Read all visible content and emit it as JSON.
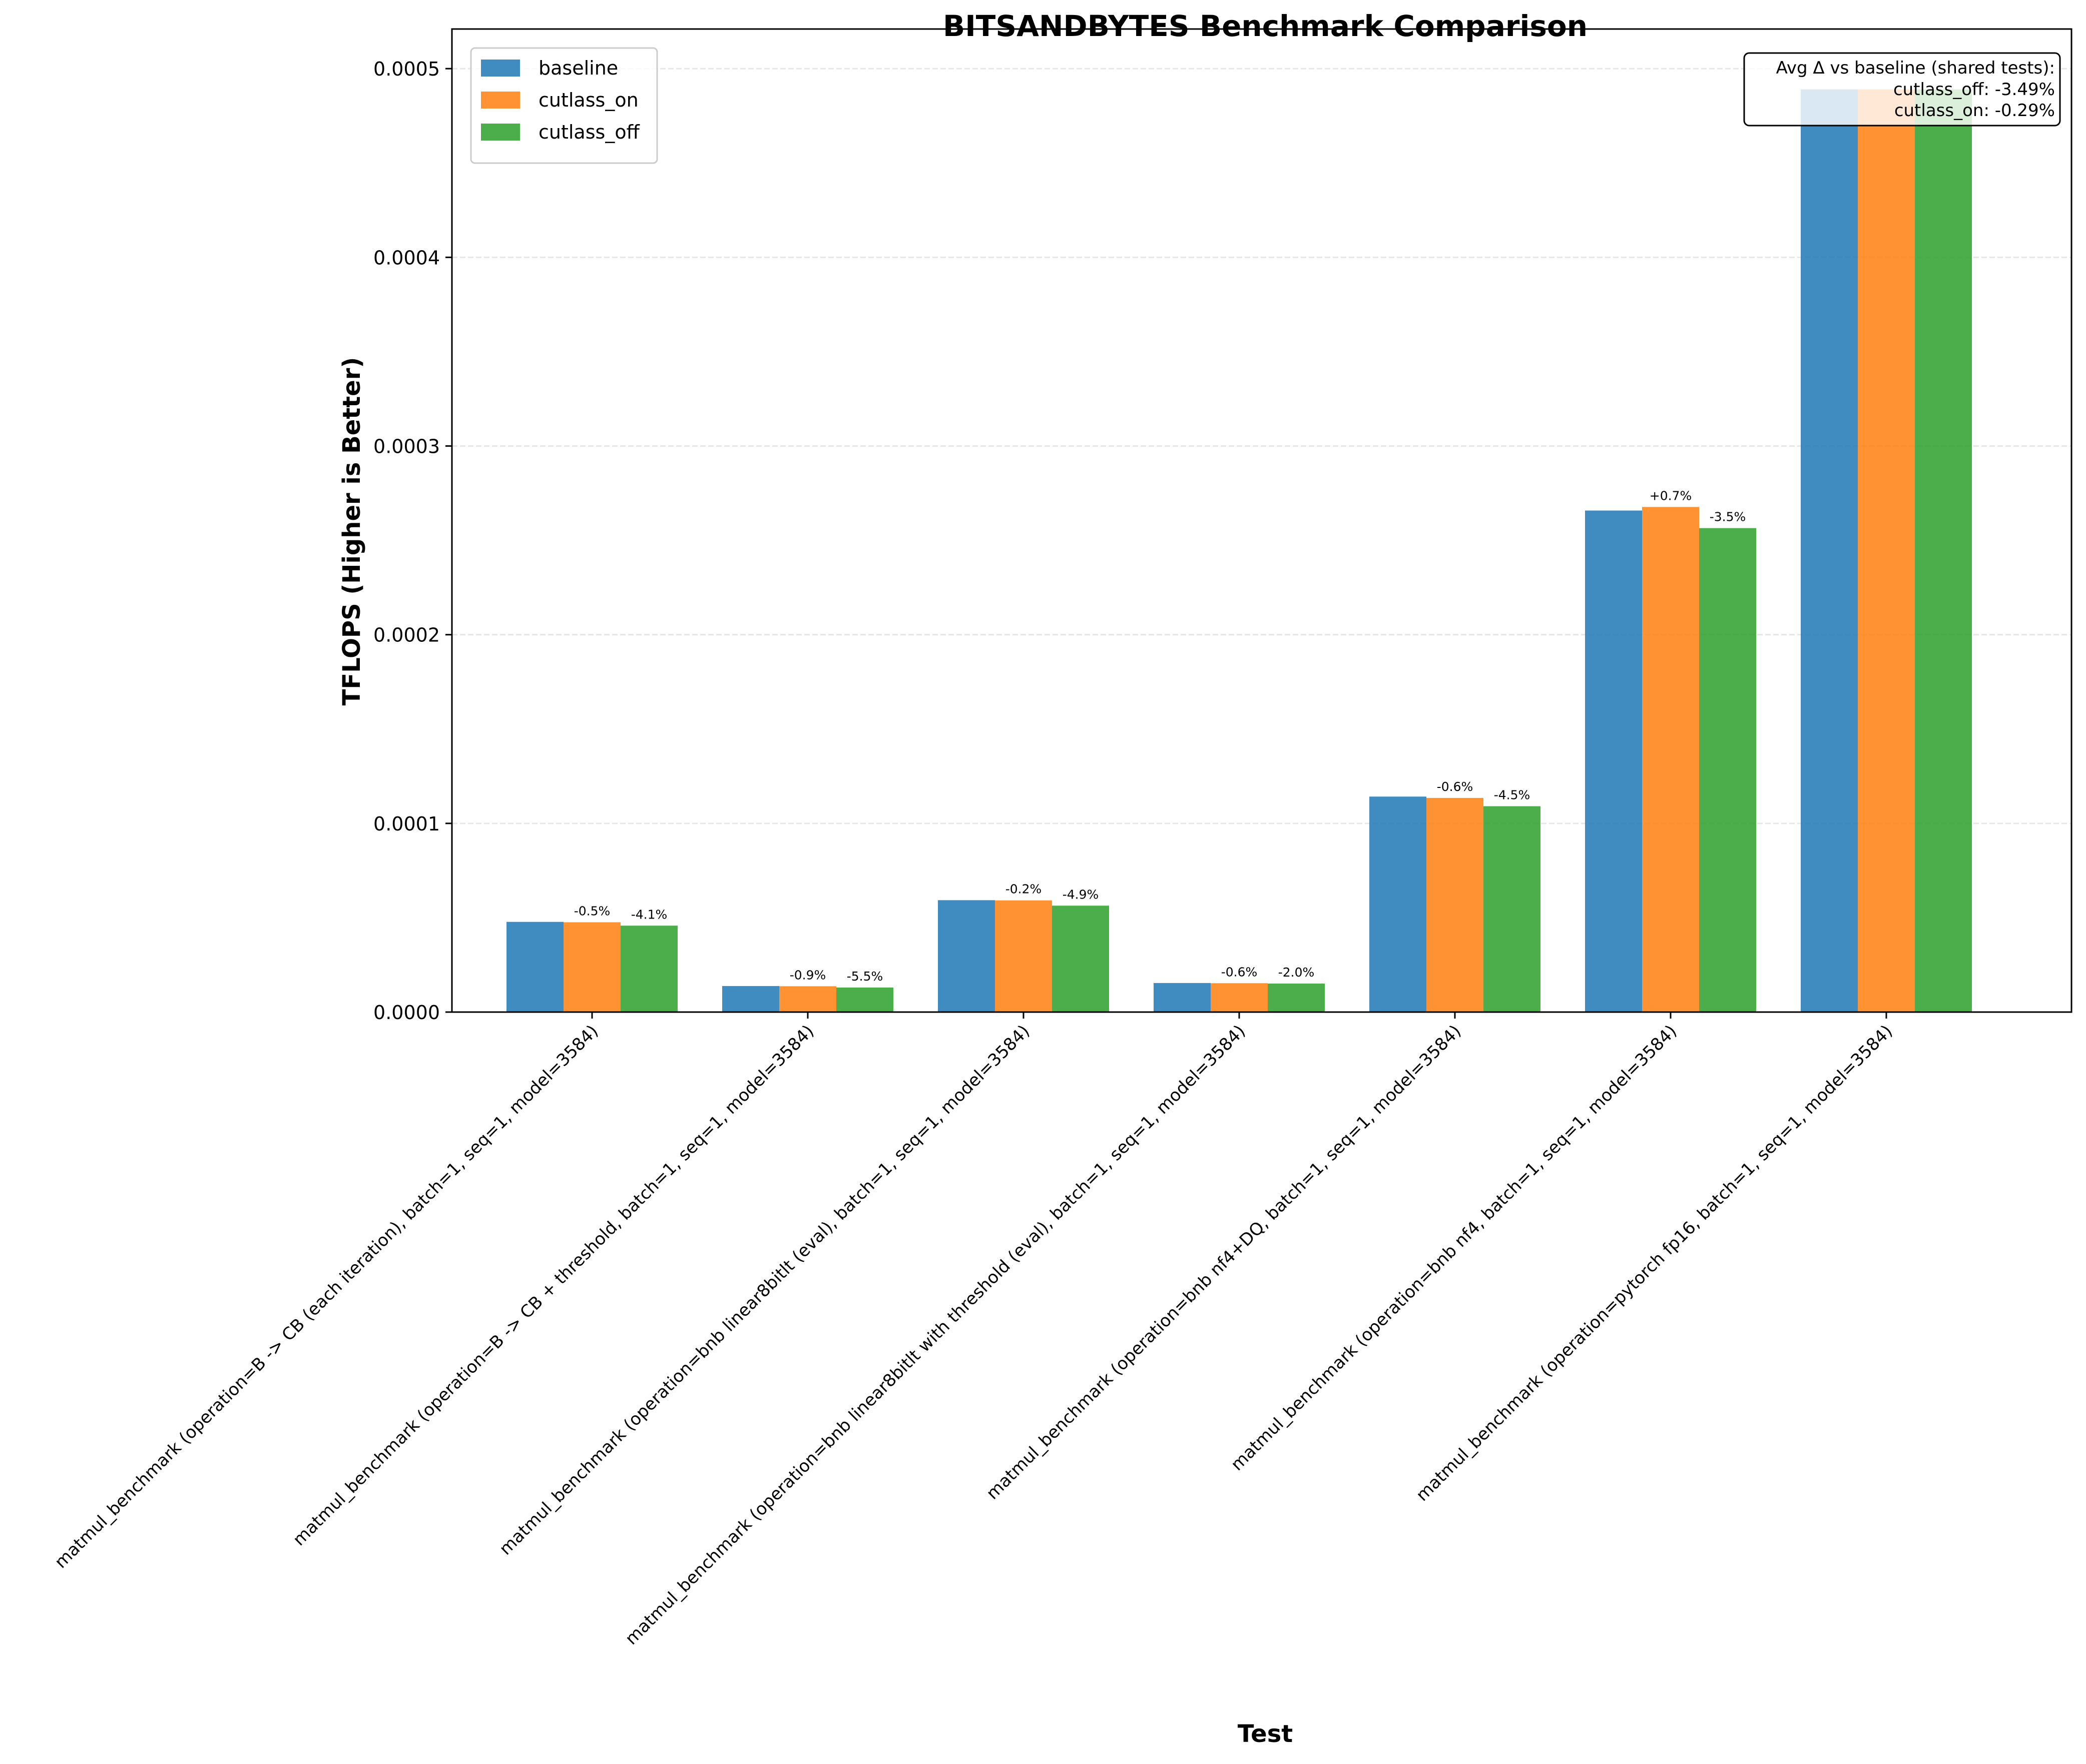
{
  "chart_data": {
    "type": "bar",
    "title": "BITSANDBYTES Benchmark Comparison",
    "xlabel": "Test",
    "ylabel": "TFLOPS (Higher is Better)",
    "ylim": [
      0,
      0.000521
    ],
    "yticks": [
      0,
      0.0001,
      0.0002,
      0.0003,
      0.0004,
      0.0005
    ],
    "ytick_labels": [
      "0.0000",
      "0.0001",
      "0.0002",
      "0.0003",
      "0.0004",
      "0.0005"
    ],
    "grid": "y-dashed",
    "legend_position": "top-left",
    "categories": [
      "matmul_benchmark (operation=B -> CB (each iteration), batch=1, seq=1, model=3584)",
      "matmul_benchmark (operation=B -> CB + threshold, batch=1, seq=1, model=3584)",
      "matmul_benchmark (operation=bnb linear8bitlt (eval), batch=1, seq=1, model=3584)",
      "matmul_benchmark (operation=bnb linear8bitlt with threshold (eval), batch=1, seq=1, model=3584)",
      "matmul_benchmark (operation=bnb nf4+DQ, batch=1, seq=1, model=3584)",
      "matmul_benchmark (operation=bnb nf4, batch=1, seq=1, model=3584)",
      "matmul_benchmark (operation=pytorch fp16, batch=1, seq=1, model=3584)"
    ],
    "series": [
      {
        "name": "baseline",
        "color": "#1f77b4",
        "values": [
          4.78e-05,
          1.38e-05,
          5.93e-05,
          1.54e-05,
          0.0001142,
          0.0002658,
          0.000489
        ],
        "labels": [
          "",
          "",
          "",
          "",
          "",
          "",
          ""
        ]
      },
      {
        "name": "cutlass_on",
        "color": "#ff7f0e",
        "values": [
          4.76e-05,
          1.37e-05,
          5.92e-05,
          1.53e-05,
          0.0001135,
          0.0002677,
          0.000489
        ],
        "labels": [
          "-0.5%",
          "-0.9%",
          "-0.2%",
          "-0.6%",
          "-0.6%",
          "+0.7%",
          ""
        ]
      },
      {
        "name": "cutlass_off",
        "color": "#2ca02c",
        "values": [
          4.58e-05,
          1.3e-05,
          5.64e-05,
          1.51e-05,
          0.0001091,
          0.0002565,
          0.000489
        ],
        "labels": [
          "-4.1%",
          "-5.5%",
          "-4.9%",
          "-2.0%",
          "-4.5%",
          "-3.5%",
          ""
        ]
      }
    ],
    "annotation": {
      "title": "Avg Δ vs baseline (shared tests):",
      "lines": [
        "cutlass_off: -3.49%",
        "cutlass_on: -0.29%"
      ]
    }
  }
}
